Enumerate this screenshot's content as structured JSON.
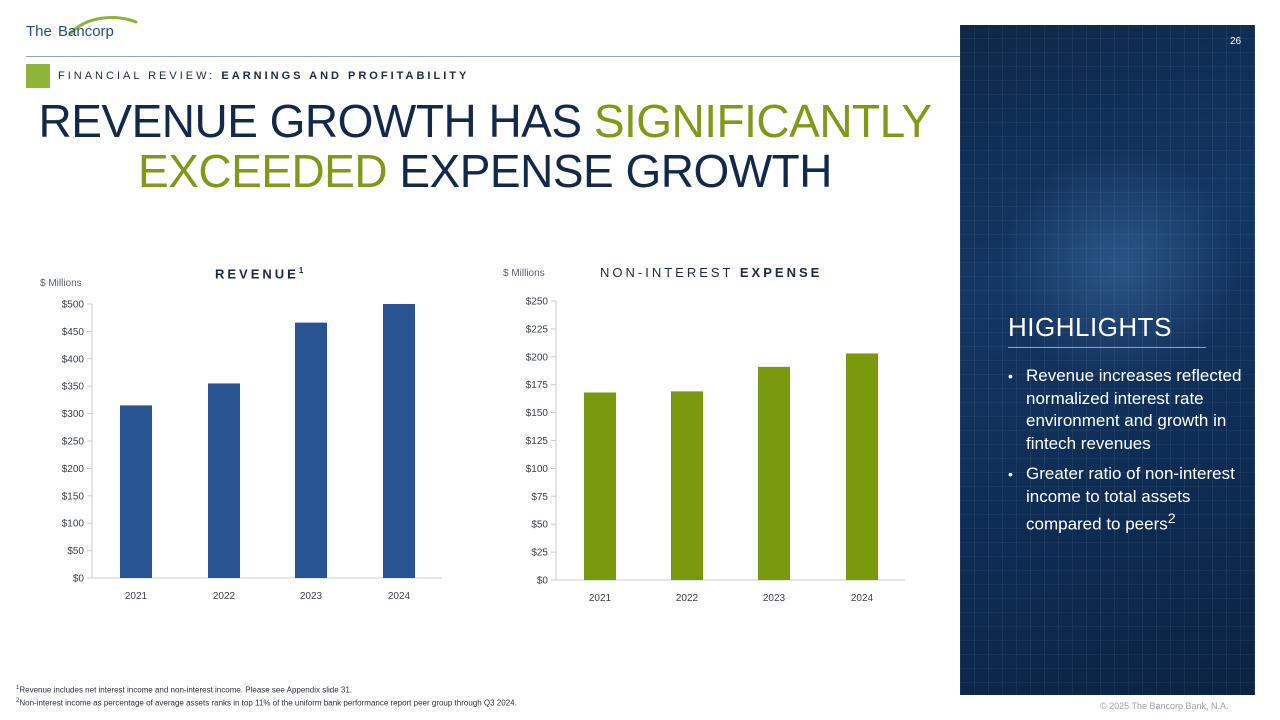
{
  "logo": {
    "the": "The",
    "bancorp": "Bancorp"
  },
  "page_number": "26",
  "section": {
    "prefix": "FINANCIAL REVIEW: ",
    "bold": "EARNINGS AND PROFITABILITY"
  },
  "title": {
    "part1": "REVENUE GROWTH HAS ",
    "part2_green": "SIGNIFICANTLY",
    "part3_green": "EXCEEDED",
    "part4": " EXPENSE GROWTH"
  },
  "colors": {
    "navy": "#13294b",
    "green": "#7f9a18",
    "revenue_bar": "#285591",
    "expense_bar": "#7a9a0e",
    "accent_square": "#8eb43a"
  },
  "chart_data": [
    {
      "type": "bar",
      "title": "REVENUE",
      "title_sup": "1",
      "ylabel": "$ Millions",
      "categories": [
        "2021",
        "2022",
        "2023",
        "2024"
      ],
      "values": [
        315,
        355,
        466,
        500
      ],
      "ylim": [
        0,
        500
      ],
      "yticks": [
        "$0",
        "$50",
        "$100",
        "$150",
        "$200",
        "$250",
        "$300",
        "$350",
        "$400",
        "$450",
        "$500"
      ],
      "grid": false
    },
    {
      "type": "bar",
      "title_light": "NON-INTEREST ",
      "title_bold": "EXPENSE",
      "ylabel": "$ Millions",
      "categories": [
        "2021",
        "2022",
        "2023",
        "2024"
      ],
      "values": [
        168,
        169,
        191,
        203
      ],
      "ylim": [
        0,
        250
      ],
      "yticks": [
        "$0",
        "$25",
        "$50",
        "$75",
        "$100",
        "$125",
        "$150",
        "$175",
        "$200",
        "$225",
        "$250"
      ],
      "grid": false
    }
  ],
  "highlights": {
    "title": "HIGHLIGHTS",
    "items": [
      {
        "text": "Revenue increases reflected normalized interest rate environment and growth in fintech revenues",
        "sup": ""
      },
      {
        "text": "Greater ratio of non-interest income to total assets compared to peers",
        "sup": "2"
      }
    ]
  },
  "footnotes": [
    {
      "sup": "1",
      "text": "Revenue includes net interest income and non-interest income.  Please see Appendix slide 31."
    },
    {
      "sup": "2",
      "text": "Non-interest income as percentage of average assets ranks in top 11% of the uniform bank performance report peer group through Q3 2024."
    }
  ],
  "copyright": "© 2025 The Bancorp Bank, N.A."
}
